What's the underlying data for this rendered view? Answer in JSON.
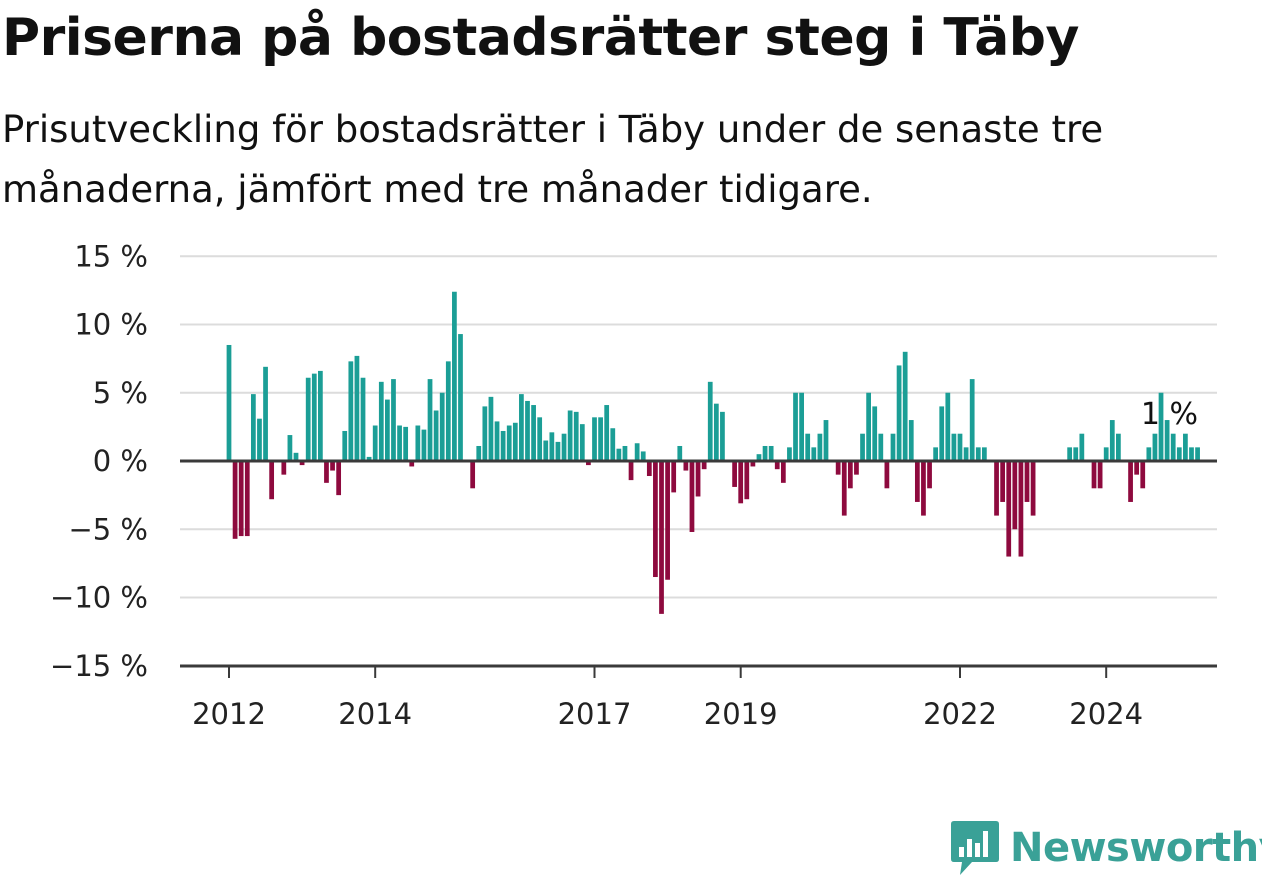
{
  "chart_data": {
    "type": "bar",
    "title": "Priserna på bostadsrätter steg i Täby",
    "subtitle": "Prisutveckling för bostadsrätter i Täby under de senaste tre månaderna, jämfört med tre månader tidigare.",
    "xlabel": "",
    "ylabel": "",
    "ylim": [
      -15,
      15
    ],
    "y_ticks": [
      {
        "value": 15,
        "label": "15 %"
      },
      {
        "value": 10,
        "label": "10 %"
      },
      {
        "value": 5,
        "label": "5 %"
      },
      {
        "value": 0,
        "label": "0 %"
      },
      {
        "value": -5,
        "label": "−5 %"
      },
      {
        "value": -10,
        "label": "−10 %"
      },
      {
        "value": -15,
        "label": "−15 %"
      }
    ],
    "x_ticks": [
      {
        "value": 2012,
        "label": "2012"
      },
      {
        "value": 2014,
        "label": "2014"
      },
      {
        "value": 2017,
        "label": "2017"
      },
      {
        "value": 2019,
        "label": "2019"
      },
      {
        "value": 2022,
        "label": "2022"
      },
      {
        "value": 2024,
        "label": "2024"
      }
    ],
    "start": "2012-01",
    "frequency": "monthly",
    "values": [
      8.5,
      -5.7,
      -5.5,
      -5.5,
      4.9,
      3.1,
      6.9,
      -2.8,
      0,
      -1,
      1.9,
      0.6,
      -0.3,
      6.1,
      6.4,
      6.6,
      -1.6,
      -0.7,
      -2.5,
      2.2,
      7.3,
      7.7,
      6.1,
      0.3,
      2.6,
      5.8,
      4.5,
      6.0,
      2.6,
      2.5,
      -0.4,
      2.6,
      2.3,
      6.0,
      3.7,
      5.0,
      7.3,
      12.4,
      9.3,
      0,
      -2,
      1.1,
      4.0,
      4.7,
      2.9,
      2.2,
      2.6,
      2.8,
      4.9,
      4.4,
      4.1,
      3.2,
      1.5,
      2.1,
      1.4,
      2.0,
      3.7,
      3.6,
      2.7,
      -0.3,
      3.2,
      3.2,
      4.1,
      2.4,
      0.9,
      1.1,
      -1.4,
      1.3,
      0.7,
      -1.1,
      -8.5,
      -11.2,
      -8.7,
      -2.3,
      1.1,
      -0.7,
      -5.2,
      -2.6,
      -0.6,
      5.8,
      4.2,
      3.6,
      0,
      -1.9,
      -3.1,
      -2.8,
      -0.4,
      0.5,
      1.1,
      1.1,
      -0.6,
      -1.6,
      1.0,
      5.0,
      5.0,
      2.0,
      1.0,
      2.0,
      3.0,
      0,
      -1,
      -4,
      -2,
      -1,
      2,
      5,
      4,
      2,
      -2,
      2,
      7,
      8,
      3,
      -3,
      -4,
      -2,
      1,
      4,
      5,
      2,
      2,
      1,
      6,
      1,
      1,
      0,
      -4,
      -3,
      -7,
      -5,
      -7,
      -3,
      -4,
      0,
      0,
      0,
      0,
      0,
      1,
      1,
      2,
      0,
      -2,
      -2,
      1,
      3,
      2,
      0,
      -3,
      -1,
      -2,
      1,
      2,
      5,
      3,
      2,
      1,
      2,
      1,
      1
    ],
    "positive_color": "#1b9e96",
    "negative_color": "#8e0a3e",
    "annotation": {
      "label": "1 %",
      "value": 1
    },
    "grid": true,
    "legend": "none",
    "source_brand": "Newsworthy"
  }
}
